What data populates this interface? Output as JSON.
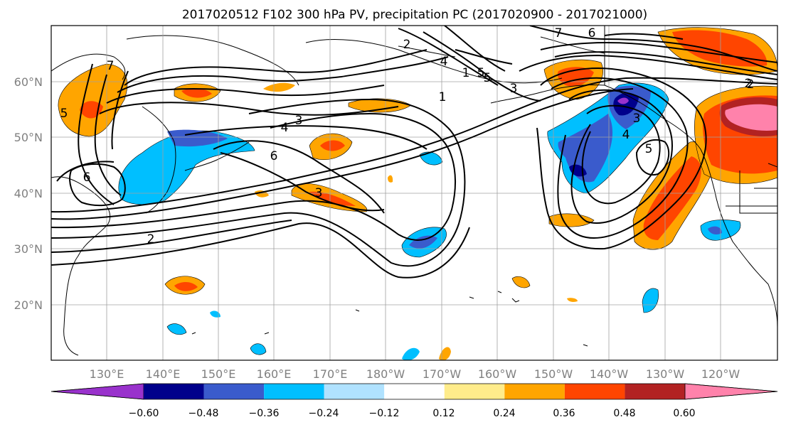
{
  "title": "2017020512 F102 300 hPa PV, precipitation PC (2017020900 - 2017021000)",
  "lat_ticks": [
    "60°N",
    "50°N",
    "40°N",
    "30°N",
    "20°N"
  ],
  "lon_ticks": [
    "130°E",
    "140°E",
    "150°E",
    "160°E",
    "170°E",
    "180°W",
    "170°W",
    "160°W",
    "150°W",
    "140°W",
    "130°W",
    "120°W"
  ],
  "colorbar": {
    "labels": [
      "−0.60",
      "−0.48",
      "−0.36",
      "−0.24",
      "−0.12",
      "0.12",
      "0.24",
      "0.36",
      "0.48",
      "0.60"
    ],
    "colors": [
      "#9932CC",
      "#00008B",
      "#3A5BCC",
      "#00BFFF",
      "#B0E2FF",
      "#FFFFFF",
      "#FFEC8B",
      "#FFA500",
      "#FF4500",
      "#B22222",
      "#FF82AB"
    ]
  },
  "contour_labels": [
    "7",
    "6",
    "5",
    "4",
    "3",
    "2",
    "1",
    "3",
    "4",
    "2",
    "1",
    "5",
    "6",
    "3",
    "5",
    "4",
    "3",
    "2",
    "6",
    "5",
    "7",
    "2"
  ]
}
